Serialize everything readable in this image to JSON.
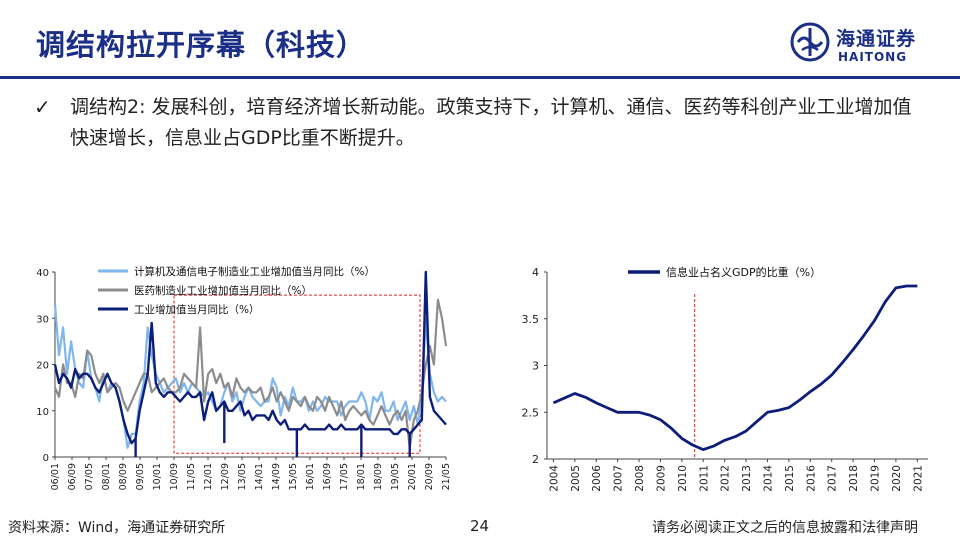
{
  "header": {
    "title": "调结构拉开序幕（科技）",
    "logo_cn": "海通证券",
    "logo_en": "HAITONG",
    "accent": "#1b2f86"
  },
  "bullet": {
    "icon": "check-icon",
    "text": "调结构2: 发展科创，培育经济增长新动能。政策支持下，计算机、通信、医药等科创产业工业增加值快速增长，信息业占GDP比重不断提升。"
  },
  "chart_data": [
    {
      "type": "line",
      "xlabel": "",
      "ylabel": "",
      "ylim": [
        0,
        40
      ],
      "yticks": [
        "0",
        "10",
        "20",
        "30",
        "40"
      ],
      "xticks": [
        "06/01",
        "06/09",
        "07/05",
        "08/01",
        "08/09",
        "09/05",
        "10/01",
        "10/09",
        "11/05",
        "12/01",
        "12/09",
        "13/05",
        "14/01",
        "14/09",
        "15/05",
        "16/01",
        "16/09",
        "17/05",
        "18/01",
        "18/09",
        "19/05",
        "20/01",
        "20/09",
        "21/05"
      ],
      "legend": [
        "计算机及通信电子制造业工业增加值当月同比（%）",
        "医药制造业工业增加值当月同比（%）",
        "工业增加值当月同比（%）"
      ],
      "highlight_box_x": [
        "10/09",
        "20/01"
      ],
      "series": [
        {
          "name": "计算机及通信电子制造业工业增加值当月同比（%）",
          "color": "#7fb6ee",
          "values": [
            33,
            22,
            28,
            18,
            25,
            19,
            16,
            15,
            23,
            17,
            15,
            12,
            18,
            14,
            16,
            15,
            12,
            8,
            2,
            5,
            5,
            12,
            16,
            28,
            22,
            18,
            16,
            14,
            15,
            16,
            17,
            14,
            16,
            14,
            16,
            15,
            14,
            13,
            14,
            12,
            10,
            11,
            14,
            16,
            12,
            14,
            10,
            13,
            15,
            13,
            12,
            11,
            12,
            12,
            17,
            15,
            9,
            13,
            11,
            15,
            12,
            12,
            13,
            10,
            12,
            10,
            11,
            13,
            12,
            12,
            12,
            9,
            11,
            12,
            12,
            12,
            14,
            12,
            8,
            13,
            12,
            14,
            10,
            10,
            12,
            8,
            10,
            12,
            8,
            11,
            7,
            13,
            30,
            18,
            14,
            12,
            13,
            12
          ]
        },
        {
          "name": "医药制造业工业增加值当月同比（%）",
          "color": "#8c8c8c",
          "values": [
            15,
            13,
            20,
            16,
            16,
            13,
            18,
            17,
            23,
            22,
            18,
            16,
            18,
            14,
            15,
            16,
            15,
            12,
            10,
            12,
            14,
            16,
            18,
            18,
            14,
            15,
            16,
            17,
            15,
            14,
            14,
            15,
            18,
            17,
            16,
            15,
            28,
            12,
            18,
            19,
            16,
            18,
            15,
            16,
            13,
            17,
            15,
            14,
            15,
            14,
            14,
            15,
            12,
            13,
            15,
            12,
            14,
            12,
            10,
            13,
            12,
            11,
            13,
            11,
            10,
            13,
            12,
            10,
            13,
            11,
            9,
            12,
            8,
            10,
            11,
            10,
            9,
            10,
            8,
            7,
            9,
            11,
            9,
            7,
            9,
            10,
            8,
            10,
            2,
            8,
            10,
            14,
            20,
            24,
            20,
            34,
            30,
            24
          ]
        },
        {
          "name": "工业增加值当月同比（%）",
          "color": "#0c1d7a",
          "values": [
            20,
            16,
            18,
            17,
            15,
            19,
            17,
            18,
            18,
            17,
            15,
            14,
            16,
            18,
            16,
            15,
            12,
            8,
            5,
            3,
            4,
            10,
            14,
            18,
            29,
            16,
            14,
            13,
            14,
            14,
            13,
            12,
            13,
            14,
            13,
            13,
            14,
            8,
            12,
            14,
            10,
            11,
            12,
            10,
            10,
            11,
            12,
            9,
            10,
            8,
            9,
            9,
            9,
            8,
            10,
            8,
            7,
            8,
            6,
            6,
            6,
            6,
            7,
            6,
            6,
            6,
            6,
            6,
            7,
            6,
            6,
            7,
            6,
            6,
            6,
            6,
            7,
            6,
            6,
            6,
            6,
            6,
            6,
            6,
            5,
            5,
            6,
            6,
            5,
            6,
            7,
            8,
            40,
            13,
            10,
            9,
            8,
            7
          ]
        }
      ],
      "events": [
        {
          "series": 2,
          "index": 20,
          "value": 0
        },
        {
          "series": 2,
          "index": 42,
          "value": 3
        },
        {
          "series": 2,
          "index": 60,
          "value": 0
        },
        {
          "series": 2,
          "index": 76,
          "value": 0
        },
        {
          "series": 2,
          "index": 88,
          "value": 0
        }
      ]
    },
    {
      "type": "line",
      "xlabel": "",
      "ylabel": "",
      "ylim": [
        2,
        4
      ],
      "yticks": [
        "2",
        "2.5",
        "3",
        "3.5",
        "4"
      ],
      "categories": [
        "2004",
        "2005",
        "2006",
        "2007",
        "2008",
        "2009",
        "2010",
        "2011",
        "2012",
        "2013",
        "2014",
        "2015",
        "2016",
        "2017",
        "2018",
        "2019",
        "2020",
        "2021"
      ],
      "legend": [
        "信息业占名义GDP的比重（%）"
      ],
      "vline_at": 2010.6,
      "series": [
        {
          "name": "信息业占名义GDP的比重（%）",
          "color": "#0c1d7a",
          "x": [
            2004,
            2004.5,
            2005,
            2005.5,
            2006,
            2006.5,
            2007,
            2007.5,
            2008,
            2008.5,
            2009,
            2009.5,
            2010,
            2010.5,
            2011,
            2011.5,
            2012,
            2012.5,
            2013,
            2013.5,
            2014,
            2014.5,
            2015,
            2015.5,
            2016,
            2016.5,
            2017,
            2017.5,
            2018,
            2018.5,
            2019,
            2019.5,
            2020,
            2020.5,
            2021
          ],
          "values": [
            2.6,
            2.65,
            2.7,
            2.66,
            2.6,
            2.55,
            2.5,
            2.5,
            2.5,
            2.47,
            2.42,
            2.33,
            2.22,
            2.15,
            2.1,
            2.14,
            2.2,
            2.24,
            2.3,
            2.4,
            2.5,
            2.52,
            2.55,
            2.63,
            2.72,
            2.8,
            2.9,
            3.03,
            3.17,
            3.32,
            3.48,
            3.68,
            3.83,
            3.85,
            3.85
          ]
        }
      ]
    }
  ],
  "footer": {
    "source": "资料来源：Wind，海通证券研究所",
    "page": "24",
    "disclaimer": "请务必阅读正文之后的信息披露和法律声明"
  }
}
